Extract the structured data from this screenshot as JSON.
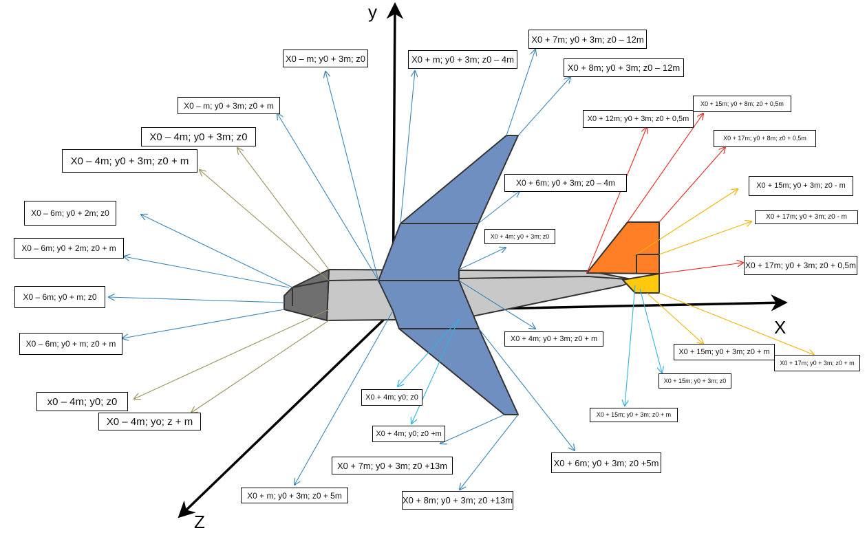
{
  "axes": {
    "x": "X",
    "y": "y",
    "z": "Z"
  },
  "colors": {
    "body": "#c8c8c8",
    "nose": "#6f6f6f",
    "wing": "#6e8fc0",
    "fin_orange": "#ff7f27",
    "fin_yellow": "#ffc90e",
    "arrow_blue": "#3a86b8",
    "arrow_olive": "#9a8f5c",
    "arrow_red": "#e8241b",
    "arrow_yellow": "#f0b400",
    "arrow_cyan": "#2fb2e0"
  },
  "labels": [
    {
      "id": "l1",
      "text": "X0 – m; y0 + 3m; z0"
    },
    {
      "id": "l2",
      "text": "X0 + m; y0 + 3m; z0 – 4m"
    },
    {
      "id": "l3",
      "text": "X0 + 7m; y0 + 3m; z0 – 12m"
    },
    {
      "id": "l4",
      "text": "X0 + 8m; y0 + 3m; z0 – 12m"
    },
    {
      "id": "l5",
      "text": "X0 – m; y0 + 3m; z0 + m"
    },
    {
      "id": "l6",
      "text": "X0 + 15m; y0 + 8m; z0 + 0,5m"
    },
    {
      "id": "l7",
      "text": "X0 + 12m; y0 + 3m; z0 + 0,5m"
    },
    {
      "id": "l8",
      "text": "X0 – 4m; y0 + 3m; z0"
    },
    {
      "id": "l9",
      "text": "X0 + 17m; y0 + 8m; z0 + 0,5m"
    },
    {
      "id": "l10",
      "text": "X0 – 4m; y0 + 3m; z0 + m"
    },
    {
      "id": "l11",
      "text": "X0 + 6m; y0 + 3m; z0 – 4m"
    },
    {
      "id": "l12",
      "text": "X0 + 15m; y0 + 3m; z0  - m"
    },
    {
      "id": "l13",
      "text": "X0 – 6m; y0 + 2m; z0"
    },
    {
      "id": "l14",
      "text": "X0 + 17m; y0 + 3m; z0  - m"
    },
    {
      "id": "l15",
      "text": "X0 + 4m; y0 + 3m; z0"
    },
    {
      "id": "l16",
      "text": "X0 – 6m; y0 + 2m; z0 + m"
    },
    {
      "id": "l17",
      "text": "X0 + 17m; y0 + 3m; z0 + 0,5m"
    },
    {
      "id": "l18",
      "text": "X0 – 6m; y0 + m; z0"
    },
    {
      "id": "l19",
      "text": "X0 + 4m; y0 + 3m; z0 + m"
    },
    {
      "id": "l20",
      "text": "X0 – 6m; y0 + m; z0 + m"
    },
    {
      "id": "l21",
      "text": "X0 + 15m; y0 + 3m; z0  + m"
    },
    {
      "id": "l22",
      "text": "X0 + 17m; y0 + 3m; z0  + m"
    },
    {
      "id": "l23",
      "text": "X0 + 15m; y0 + 3m; z0"
    },
    {
      "id": "l24",
      "text": "X0 + 4m;  y0; z0"
    },
    {
      "id": "l25",
      "text": "x0 – 4m; y0; z0"
    },
    {
      "id": "l26",
      "text": "X0 – 4m; yo; z + m"
    },
    {
      "id": "l27",
      "text": "X0 + 15m; y0 + 3m; z0 + m"
    },
    {
      "id": "l28",
      "text": "X0 + 4m;  y0; z0 +m"
    },
    {
      "id": "l29",
      "text": "X0 + 7m; y0 + 3m; z0 +13m"
    },
    {
      "id": "l30",
      "text": "X0 + 6m; y0 + 3m; z0 +5m"
    },
    {
      "id": "l31",
      "text": "X0 + m; y0 + 3m; z0 + 5m"
    },
    {
      "id": "l32",
      "text": "X0 + 8m; y0 + 3m; z0 +13m"
    }
  ]
}
